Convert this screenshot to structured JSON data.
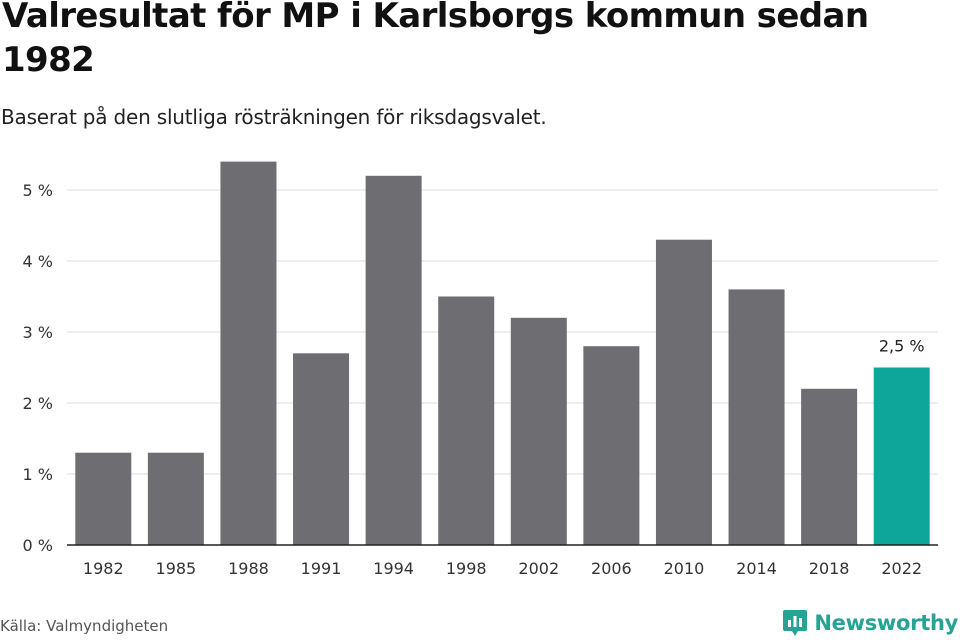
{
  "title": "Valresultat för MP i Karlsborgs kommun sedan 1982",
  "subtitle": "Baserat på den slutliga rösträkningen för riksdagsvalet.",
  "source": "Källa: Valmyndigheten",
  "brand": {
    "name": "Newsworthy",
    "logo_icon": "newsworthy-logo-icon",
    "color": "#27a293"
  },
  "colors": {
    "bar": "#6e6d72",
    "highlight": "#0ea69a",
    "grid": "#dcdcdc",
    "axis": "#222222"
  },
  "chart_data": {
    "type": "bar",
    "title": "Valresultat för MP i Karlsborgs kommun sedan 1982",
    "subtitle": "Baserat på den slutliga rösträkningen för riksdagsvalet.",
    "xlabel": "",
    "ylabel": "",
    "unit": "%",
    "categories": [
      "1982",
      "1985",
      "1988",
      "1991",
      "1994",
      "1998",
      "2002",
      "2006",
      "2010",
      "2014",
      "2018",
      "2022"
    ],
    "values": [
      1.3,
      1.3,
      5.4,
      2.7,
      5.2,
      3.5,
      3.2,
      2.8,
      4.3,
      3.6,
      2.2,
      2.5
    ],
    "y_ticks": [
      "0 %",
      "1 %",
      "2 %",
      "3 %",
      "4 %",
      "5 %"
    ],
    "ylim": [
      0,
      5.5
    ],
    "grid": true,
    "highlight_index": 11,
    "annotations": [
      {
        "category": "2022",
        "text": "2,5 %"
      }
    ]
  }
}
